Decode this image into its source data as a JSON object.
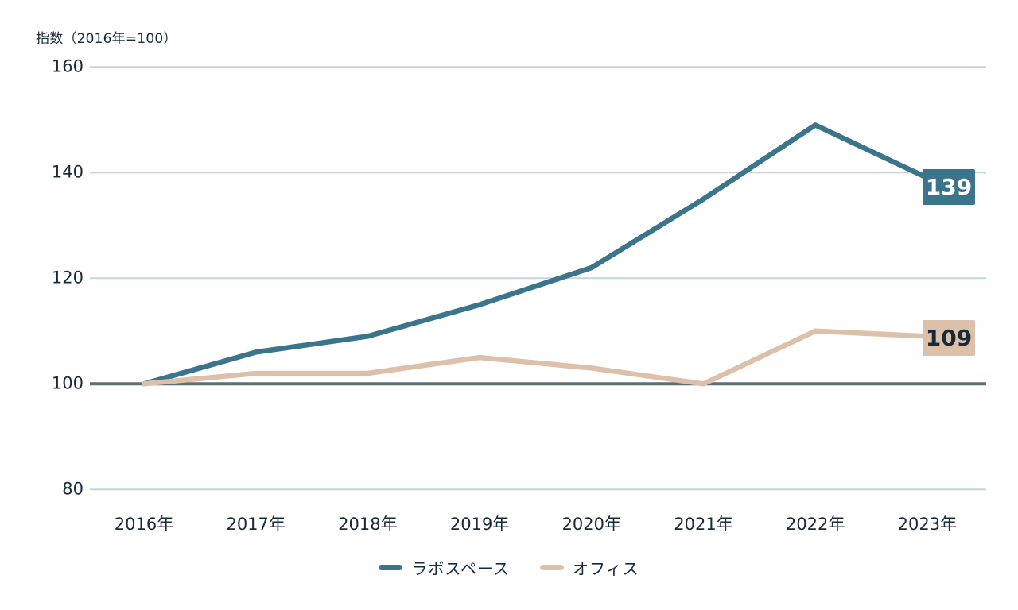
{
  "chart_data": {
    "type": "line",
    "title": "",
    "ylabel": "指数（2016年=100）",
    "xlabel": "",
    "categories": [
      "2016年",
      "2017年",
      "2018年",
      "2019年",
      "2020年",
      "2021年",
      "2022年",
      "2023年"
    ],
    "series": [
      {
        "name": "ラボスペース",
        "values": [
          100,
          106,
          109,
          115,
          122,
          135,
          149,
          139
        ],
        "color": "#3a758b",
        "end_label": "139",
        "end_label_text_color": "#ffffff"
      },
      {
        "name": "オフィス",
        "values": [
          100,
          102,
          102,
          105,
          103,
          100,
          110,
          109
        ],
        "color": "#dcc0a9",
        "end_label": "109",
        "end_label_text_color": "#1b2a3a"
      }
    ],
    "y_ticks": [
      160,
      140,
      120,
      100,
      80
    ],
    "ylim": [
      80,
      160
    ],
    "baseline_value": 100,
    "grid": "horizontal",
    "legend_position": "bottom"
  },
  "colors": {
    "background": "#ffffff",
    "text": "#1b2a3a",
    "gridline": "#c8d3d8",
    "baseline": "#5e6e76",
    "series_lab": "#3a758b",
    "series_office": "#dcc0a9"
  }
}
